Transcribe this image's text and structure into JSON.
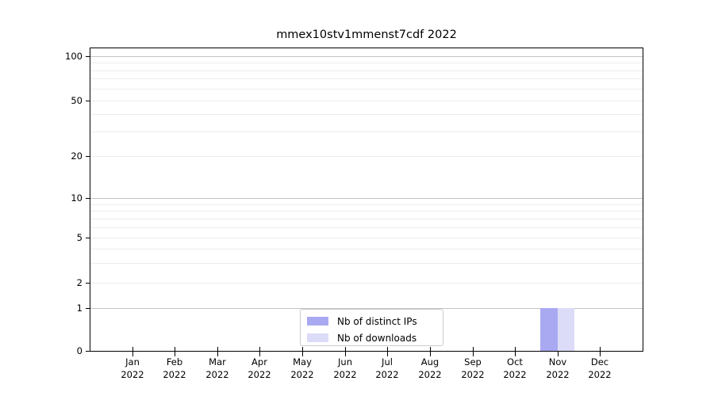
{
  "chart_data": {
    "type": "bar",
    "title": "mmex10stv1mmenst7cdf 2022",
    "year": "2022",
    "months": [
      "Jan",
      "Feb",
      "Mar",
      "Apr",
      "May",
      "Jun",
      "Jul",
      "Aug",
      "Sep",
      "Oct",
      "Nov",
      "Dec"
    ],
    "series": [
      {
        "name": "Nb of distinct IPs",
        "color": "#a9a9f2",
        "values": [
          0,
          0,
          0,
          0,
          0,
          0,
          0,
          0,
          0,
          0,
          1,
          0
        ]
      },
      {
        "name": "Nb of downloads",
        "color": "#dcdcf8",
        "values": [
          0,
          0,
          0,
          0,
          0,
          0,
          0,
          0,
          0,
          0,
          1,
          0
        ]
      }
    ],
    "yscale": "symlog",
    "ytick_labels": [
      0,
      1,
      2,
      5,
      10,
      20,
      50,
      100
    ],
    "ylim": [
      0,
      100
    ],
    "grid": "both",
    "legend_position": "lower center",
    "colors": {
      "major_grid": "#c3c3c3",
      "minor_grid": "#ececec",
      "spine": "#000000",
      "background": "#ffffff"
    }
  }
}
